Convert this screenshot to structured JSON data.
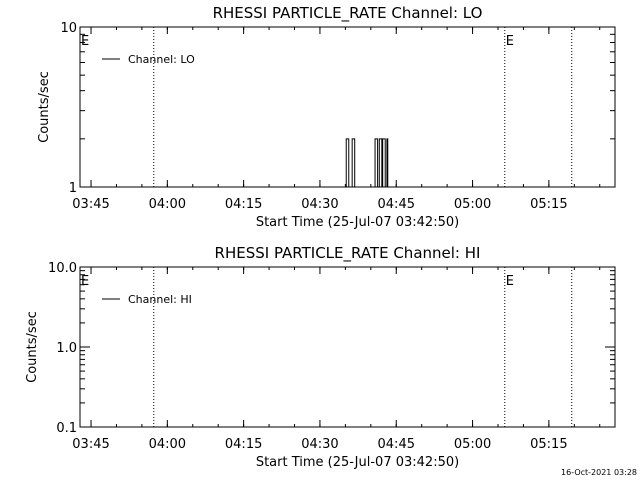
{
  "footer": {
    "timestamp": "16-Oct-2021 03:28"
  },
  "chart_data": [
    {
      "type": "line",
      "title": "RHESSI PARTICLE_RATE Channel: LO",
      "xlabel": "Start Time (25-Jul-07 03:42:50)",
      "ylabel": "Counts/sec",
      "x_ticks": [
        "03:45",
        "04:00",
        "04:15",
        "04:30",
        "04:45",
        "05:00",
        "05:15"
      ],
      "y_scale": "log",
      "ylim": [
        1,
        10
      ],
      "y_ticks": [
        "1",
        "10"
      ],
      "legend": {
        "entries": [
          "Channel: LO"
        ],
        "placement": "top-left"
      },
      "series": [
        {
          "name": "Channel: LO",
          "x": [
            "04:34:50",
            "04:35:10",
            "04:35:20",
            "04:35:40",
            "04:35:50",
            "04:36:20",
            "04:36:30",
            "04:36:50",
            "04:37:00",
            "04:38:30",
            "04:40:40",
            "04:40:50",
            "04:41:10",
            "04:41:20",
            "04:41:40",
            "04:41:50",
            "04:42:10",
            "04:42:20",
            "04:42:40",
            "04:42:50",
            "04:43:10",
            "04:43:20",
            "04:43:40"
          ],
          "y": [
            1,
            2,
            2,
            1,
            1,
            2,
            2,
            1,
            1,
            1,
            1,
            2,
            2,
            1,
            2,
            2,
            1,
            2,
            2,
            1,
            2,
            1,
            1
          ]
        }
      ],
      "event_lines": [
        "03:57:20",
        "05:06:20",
        "05:19:30"
      ],
      "annotations": [
        {
          "text": "E",
          "x": "03:42:50"
        },
        {
          "text": "E",
          "x": "05:06:20"
        }
      ]
    },
    {
      "type": "line",
      "title": "RHESSI PARTICLE_RATE Channel: HI",
      "xlabel": "Start Time (25-Jul-07 03:42:50)",
      "ylabel": "Counts/sec",
      "x_ticks": [
        "03:45",
        "04:00",
        "04:15",
        "04:30",
        "04:45",
        "05:00",
        "05:15"
      ],
      "y_scale": "log",
      "ylim": [
        0.1,
        10
      ],
      "y_ticks": [
        "0.1",
        "1.0",
        "10.0"
      ],
      "legend": {
        "entries": [
          "Channel: HI"
        ],
        "placement": "top-left"
      },
      "series": [
        {
          "name": "Channel: HI",
          "x": [],
          "y": []
        }
      ],
      "event_lines": [
        "03:57:20",
        "05:06:20",
        "05:19:30"
      ],
      "annotations": [
        {
          "text": "E",
          "x": "03:42:50"
        },
        {
          "text": "E",
          "x": "05:06:20"
        }
      ]
    }
  ]
}
